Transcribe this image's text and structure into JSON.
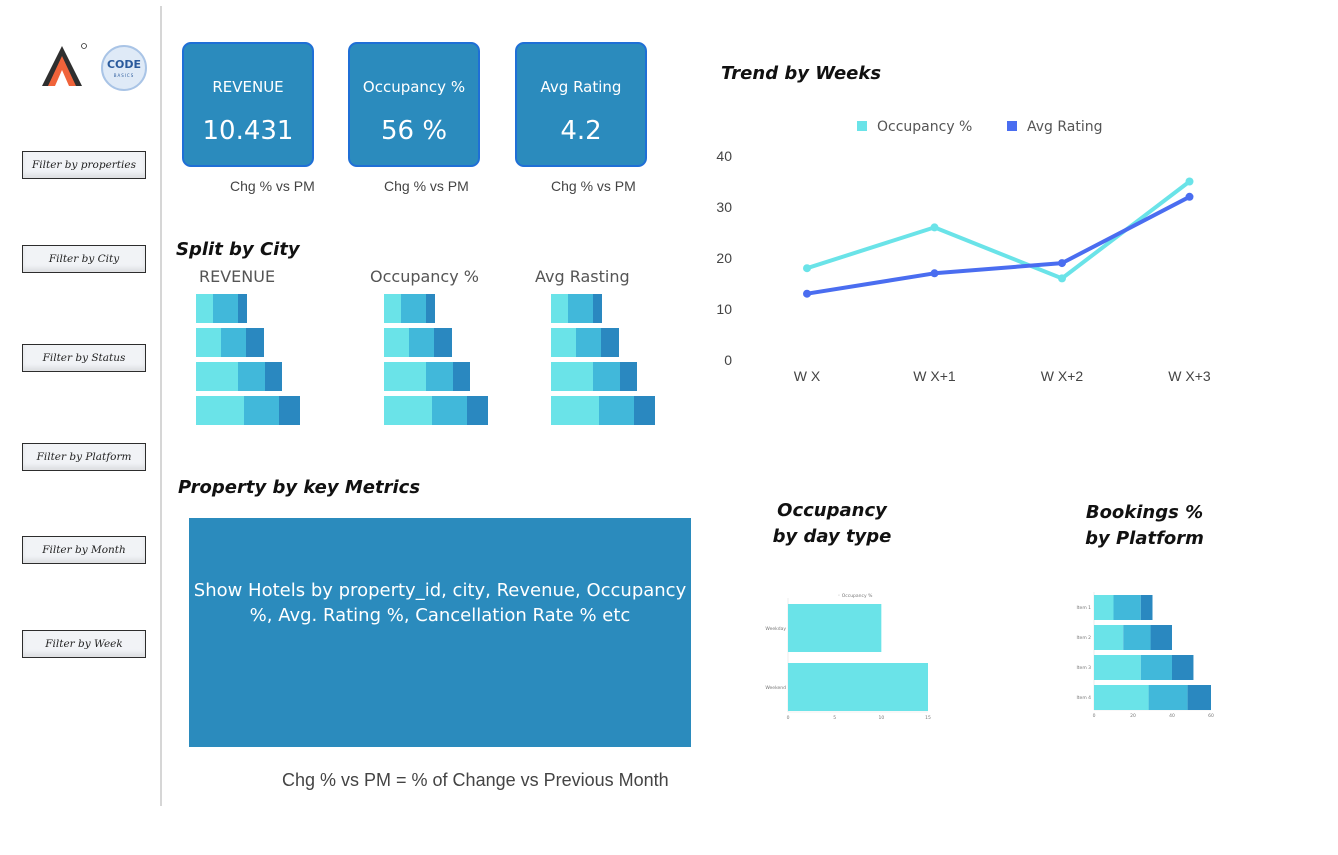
{
  "logos": {
    "codebasics_line1": "CODE",
    "codebasics_line2": "BASICS"
  },
  "filters": [
    "Filter by properties",
    "Filter by City",
    "Filter by Status",
    "Filter by Platform",
    "Filter by Month",
    "Filter by Week"
  ],
  "kpis": [
    {
      "title": "REVENUE",
      "value": "10.431",
      "chg": "Chg % vs PM"
    },
    {
      "title": "Occupancy %",
      "value": "56 %",
      "chg": "Chg % vs PM"
    },
    {
      "title": "Avg Rating",
      "value": "4.2",
      "chg": "Chg % vs PM"
    }
  ],
  "split_by_city": {
    "title": "Split by City",
    "labels": [
      "REVENUE",
      "Occupancy %",
      "Avg Rasting"
    ]
  },
  "property_section": {
    "title": "Property by key Metrics",
    "box_text": "Show Hotels by property_id, city, Revenue, Occupancy %, Avg. Rating %, Cancellation Rate % etc"
  },
  "footnote": "Chg % vs PM = % of Change vs Previous Month",
  "colors": {
    "kpi_bg": "#2b8bbd",
    "kpi_border": "#1f6fd6",
    "occupancy_line": "#6ae3e8",
    "rating_line": "#4a6df0",
    "bar_light": "#6ae3e8",
    "bar_mid": "#41b8da",
    "bar_dark": "#2a88c0"
  },
  "chart_data": [
    {
      "type": "line",
      "title": "Trend by Weeks",
      "categories": [
        "W X",
        "W X+1",
        "W X+2",
        "W X+3"
      ],
      "series": [
        {
          "name": "Occupancy %",
          "values": [
            18,
            26,
            16,
            35
          ]
        },
        {
          "name": "Avg Rating",
          "values": [
            13,
            17,
            19,
            32
          ]
        }
      ],
      "ylim": [
        0,
        40
      ],
      "yticks": [
        "0",
        "10",
        "20",
        "30",
        "40"
      ],
      "legend": "top-center",
      "grid": false
    },
    {
      "type": "bar",
      "orientation": "horizontal",
      "title": "Occupancy by day type",
      "legend_label": "Occupancy %",
      "categories": [
        "Weekday",
        "Weekend"
      ],
      "values": [
        10,
        15
      ],
      "xticks": [
        "0",
        "5",
        "10",
        "15"
      ],
      "xlim": [
        0,
        15
      ]
    },
    {
      "type": "bar",
      "orientation": "horizontal",
      "stacked": true,
      "title": "Bookings % by Platform",
      "categories": [
        "Item 1",
        "Item 2",
        "Item 3",
        "Item 4"
      ],
      "series": [
        {
          "values": [
            10,
            15,
            24,
            28
          ]
        },
        {
          "values": [
            14,
            14,
            16,
            20
          ]
        },
        {
          "values": [
            6,
            11,
            11,
            12
          ]
        }
      ],
      "xticks": [
        "0",
        "20",
        "40",
        "60"
      ],
      "xlim": [
        0,
        60
      ]
    },
    {
      "type": "bar",
      "orientation": "horizontal",
      "stacked": true,
      "title": "REVENUE",
      "series": [
        {
          "values": [
            17,
            25,
            42,
            48
          ]
        },
        {
          "values": [
            25,
            25,
            27,
            35
          ]
        },
        {
          "values": [
            9,
            18,
            17,
            21
          ]
        }
      ]
    },
    {
      "type": "bar",
      "orientation": "horizontal",
      "stacked": true,
      "title": "Occupancy %",
      "series": [
        {
          "values": [
            17,
            25,
            42,
            48
          ]
        },
        {
          "values": [
            25,
            25,
            27,
            35
          ]
        },
        {
          "values": [
            9,
            18,
            17,
            21
          ]
        }
      ]
    },
    {
      "type": "bar",
      "orientation": "horizontal",
      "stacked": true,
      "title": "Avg Rasting",
      "series": [
        {
          "values": [
            17,
            25,
            42,
            48
          ]
        },
        {
          "values": [
            25,
            25,
            27,
            35
          ]
        },
        {
          "values": [
            9,
            18,
            17,
            21
          ]
        }
      ]
    }
  ]
}
